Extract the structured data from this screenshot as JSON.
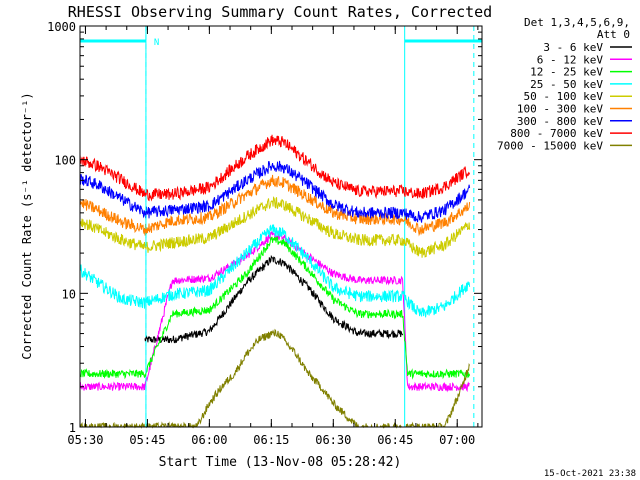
{
  "chart_data": {
    "type": "line",
    "title": "RHESSI Observing Summary Count Rates, Corrected",
    "xlabel": "Start Time (13-Nov-08 05:28:42)",
    "ylabel": "Corrected Count Rate (s⁻¹ detector⁻¹)",
    "xlim": [
      5.478,
      7.1
    ],
    "ylim": [
      1,
      1000
    ],
    "yscale": "log",
    "x_ticks": [
      5.5,
      5.75,
      6.0,
      6.25,
      6.5,
      6.75,
      7.0
    ],
    "x_tick_labels": [
      "05:30",
      "05:45",
      "06:00",
      "06:15",
      "06:30",
      "06:45",
      "07:00"
    ],
    "y_ticks": [
      1,
      10,
      100,
      1000
    ],
    "y_tick_labels": [
      "1",
      "10",
      "100",
      "1000"
    ],
    "legend_header": [
      "Det 1,3,4,5,6,9,",
      "Att 0"
    ],
    "legend_position": "right",
    "footer_timestamp": "15-Oct-2021 23:38",
    "night_intervals": [
      [
        5.478,
        5.744
      ],
      [
        6.788,
        7.1
      ]
    ],
    "night_bar_label": "N",
    "saa_markers": [
      5.744,
      7.067
    ],
    "series": [
      {
        "name": "3 - 6 keV",
        "color": "#000000",
        "x": [
          5.74,
          5.85,
          6.0,
          6.15,
          6.25,
          6.3,
          6.4,
          6.5,
          6.6,
          6.78
        ],
        "y": [
          4.5,
          4.5,
          5.2,
          12,
          18,
          17,
          11,
          6.5,
          5,
          5
        ]
      },
      {
        "name": "6 - 12 keV",
        "color": "#ff00ff",
        "x": [
          5.478,
          5.55,
          5.65,
          5.74,
          5.85,
          6.0,
          6.15,
          6.25,
          6.3,
          6.4,
          6.5,
          6.6,
          6.78,
          6.8,
          6.95,
          7.05
        ],
        "y": [
          2,
          2,
          2,
          2,
          12.5,
          13,
          19,
          27,
          26,
          19,
          14,
          12.5,
          12.5,
          2,
          2,
          2
        ]
      },
      {
        "name": "12 - 25 keV",
        "color": "#00ff00",
        "x": [
          5.478,
          5.55,
          5.65,
          5.74,
          5.85,
          6.0,
          6.15,
          6.25,
          6.3,
          6.4,
          6.5,
          6.6,
          6.78,
          6.8,
          6.95,
          7.05
        ],
        "y": [
          2.5,
          2.5,
          2.5,
          2.5,
          7,
          7.5,
          14,
          25,
          24,
          15,
          9,
          7,
          7,
          2.5,
          2.5,
          2.5
        ]
      },
      {
        "name": "25 - 50 keV",
        "color": "#00ffff",
        "x": [
          5.478,
          5.55,
          5.65,
          5.74,
          5.85,
          6.0,
          6.15,
          6.25,
          6.3,
          6.4,
          6.5,
          6.6,
          6.78,
          6.85,
          6.95,
          7.05
        ],
        "y": [
          15,
          12,
          9,
          8.5,
          9.8,
          10.5,
          20,
          30,
          28,
          18,
          11,
          9.5,
          9.5,
          7,
          8,
          12
        ]
      },
      {
        "name": "50 - 100 keV",
        "color": "#cccc00",
        "x": [
          5.478,
          5.55,
          5.65,
          5.74,
          5.85,
          6.0,
          6.15,
          6.25,
          6.3,
          6.4,
          6.5,
          6.6,
          6.78,
          6.85,
          6.95,
          7.05
        ],
        "y": [
          35,
          30,
          25,
          22,
          24,
          26,
          38,
          48,
          46,
          36,
          28,
          25,
          25,
          20,
          23,
          33
        ]
      },
      {
        "name": "100 - 300 keV",
        "color": "#ff8000",
        "x": [
          5.478,
          5.55,
          5.65,
          5.74,
          5.85,
          6.0,
          6.15,
          6.25,
          6.3,
          6.4,
          6.5,
          6.6,
          6.78,
          6.85,
          6.95,
          7.05
        ],
        "y": [
          48,
          42,
          34,
          30,
          35,
          37,
          55,
          70,
          67,
          52,
          40,
          36,
          36,
          30,
          34,
          45
        ]
      },
      {
        "name": "300 - 800 keV",
        "color": "#0000ff",
        "x": [
          5.478,
          5.55,
          5.65,
          5.74,
          5.85,
          6.0,
          6.15,
          6.25,
          6.3,
          6.4,
          6.5,
          6.6,
          6.78,
          6.85,
          6.95,
          7.05
        ],
        "y": [
          72,
          65,
          50,
          40,
          42,
          45,
          70,
          90,
          88,
          65,
          46,
          40,
          40,
          37,
          42,
          60
        ]
      },
      {
        "name": "800 - 7000 keV",
        "color": "#ff0000",
        "x": [
          5.478,
          5.55,
          5.65,
          5.74,
          5.85,
          6.0,
          6.15,
          6.25,
          6.3,
          6.4,
          6.5,
          6.6,
          6.78,
          6.85,
          6.95,
          7.05
        ],
        "y": [
          100,
          90,
          70,
          55,
          55,
          62,
          105,
          140,
          135,
          95,
          67,
          58,
          58,
          55,
          63,
          85
        ]
      },
      {
        "name": "7000 - 15000 keV",
        "color": "#808000",
        "x": [
          5.478,
          5.62,
          5.74,
          5.85,
          5.95,
          6.0,
          6.05,
          6.1,
          6.15,
          6.2,
          6.25,
          6.28,
          6.3,
          6.35,
          6.4,
          6.45,
          6.5,
          6.6,
          6.85,
          6.95,
          7.02,
          7.05
        ],
        "y": [
          1,
          1,
          1,
          1,
          1,
          1.5,
          2,
          2.5,
          3.5,
          4.5,
          5,
          5,
          4.5,
          3.5,
          2.5,
          2,
          1.5,
          1,
          1,
          1,
          2,
          3
        ]
      }
    ]
  }
}
